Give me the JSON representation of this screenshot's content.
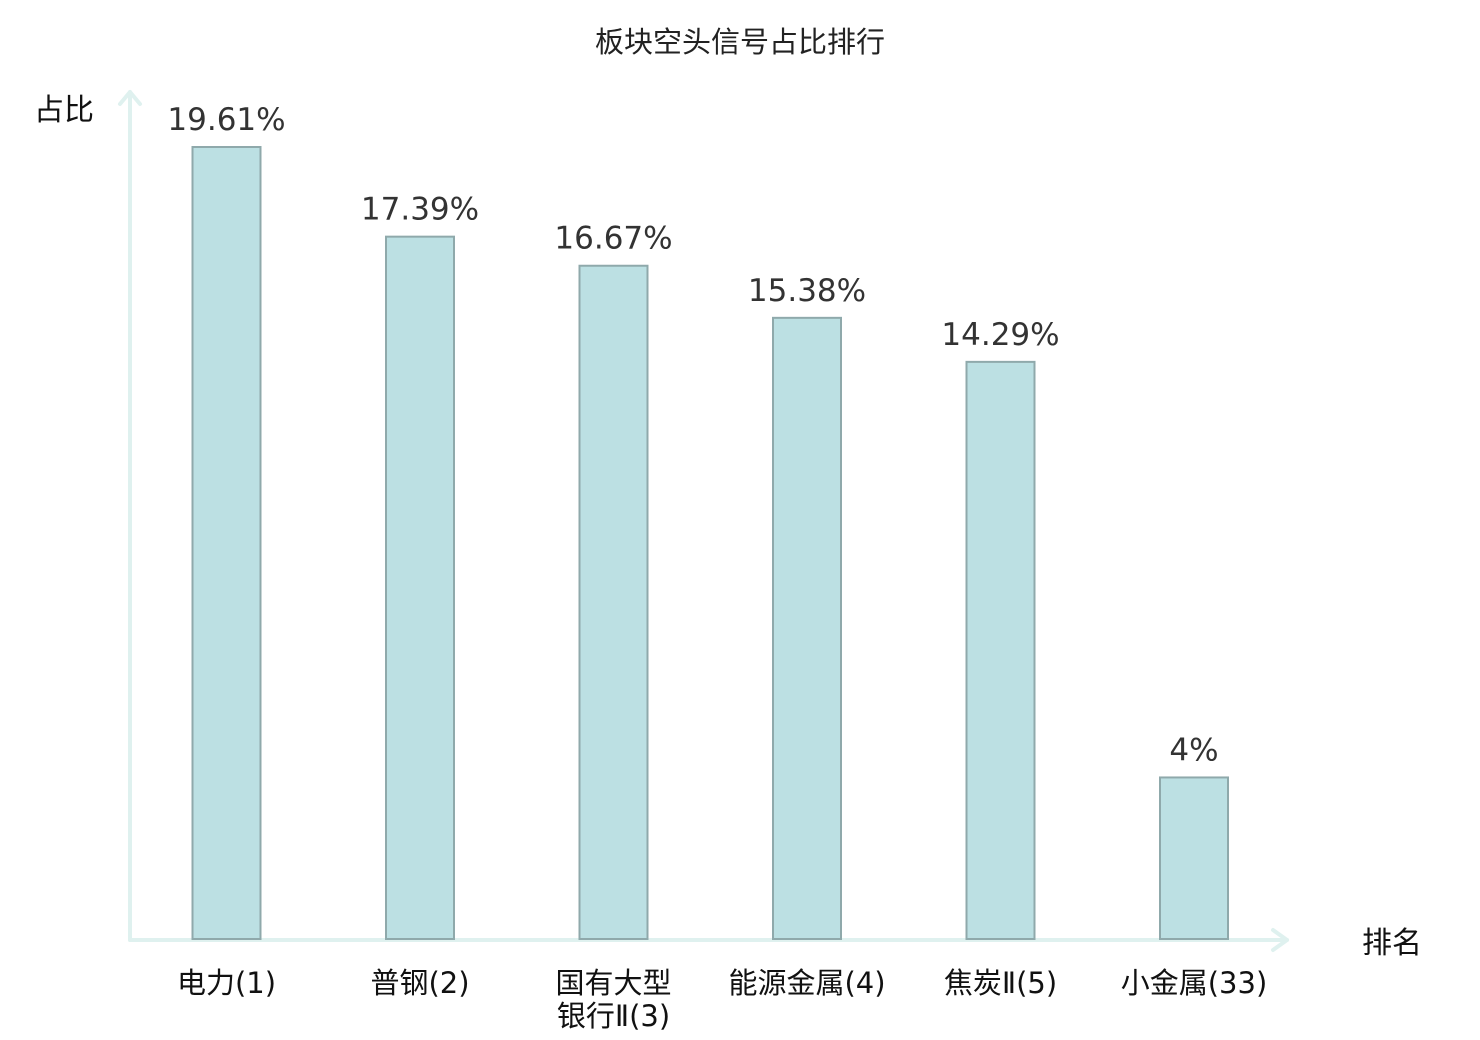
{
  "chart_data": {
    "type": "bar",
    "title": "板块空头信号占比排行",
    "xlabel": "排名",
    "ylabel": "占比",
    "categories": [
      {
        "name": "电力",
        "rank": "(1)",
        "lines": [
          "电力(1)"
        ]
      },
      {
        "name": "普钢",
        "rank": "(2)",
        "lines": [
          "普钢(2)"
        ]
      },
      {
        "name": "国有大型银行Ⅱ",
        "rank": "(3)",
        "lines": [
          "国有大型",
          "银行Ⅱ(3)"
        ]
      },
      {
        "name": "能源金属",
        "rank": "(4)",
        "lines": [
          "能源金属(4)"
        ]
      },
      {
        "name": "焦炭Ⅱ",
        "rank": "(5)",
        "lines": [
          "焦炭Ⅱ(5)"
        ]
      },
      {
        "name": "小金属",
        "rank": "(33)",
        "lines": [
          "小金属(33)"
        ]
      }
    ],
    "values": [
      19.61,
      17.39,
      16.67,
      15.38,
      14.29,
      4
    ],
    "value_labels": [
      "19.61%",
      "17.39%",
      "16.67%",
      "15.38%",
      "14.29%",
      "4%"
    ],
    "highlight_index": 5,
    "ylim": [
      0,
      19.61
    ],
    "grid": false,
    "legend": "none"
  },
  "colors": {
    "bar_fill": "#bce0e3",
    "bar_stroke": "#8fa9ab",
    "axis": "#dff1ef",
    "highlight_text": "#e8141b",
    "text": "#111111",
    "value_text": "#333333"
  }
}
